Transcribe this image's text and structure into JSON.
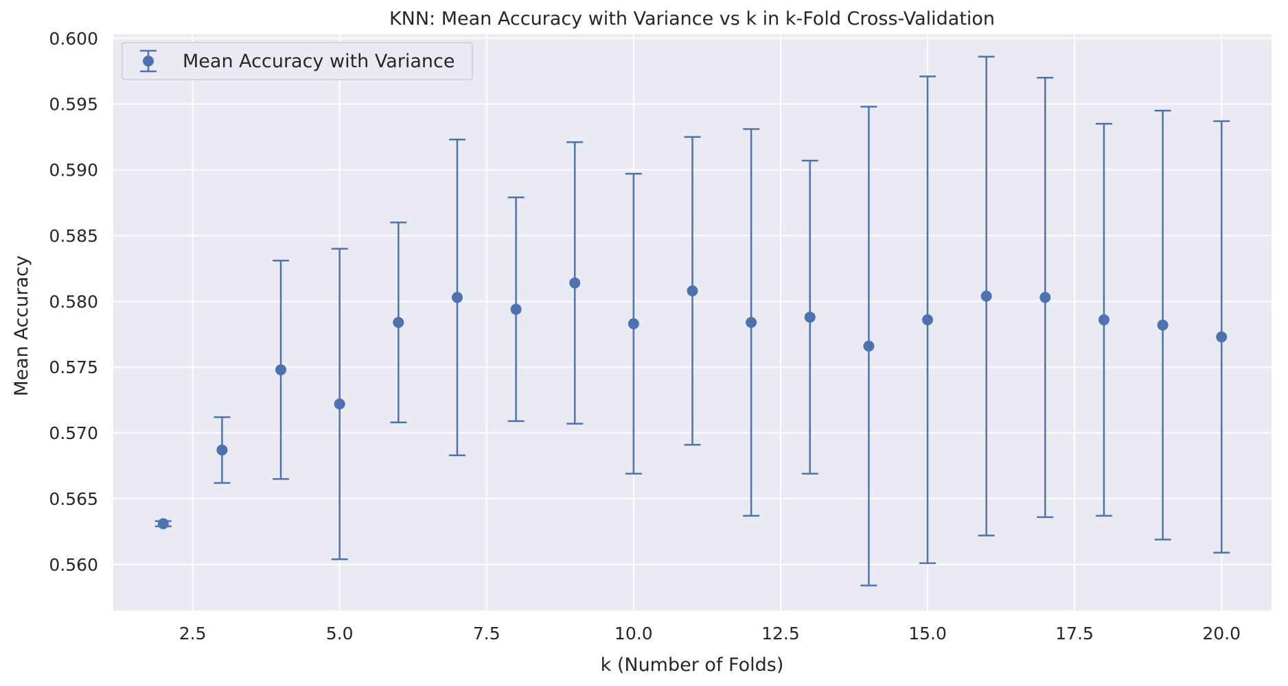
{
  "chart_data": {
    "type": "scatter",
    "title": "KNN: Mean Accuracy with Variance vs k in k-Fold Cross-Validation",
    "xlabel": "k (Number of Folds)",
    "ylabel": "Mean Accuracy",
    "xlim": [
      1.15,
      20.85
    ],
    "ylim": [
      0.5565,
      0.6003
    ],
    "xticks": [
      2.5,
      5.0,
      7.5,
      10.0,
      12.5,
      15.0,
      17.5,
      20.0
    ],
    "xtick_labels": [
      "2.5",
      "5.0",
      "7.5",
      "10.0",
      "12.5",
      "15.0",
      "17.5",
      "20.0"
    ],
    "yticks": [
      0.56,
      0.565,
      0.57,
      0.575,
      0.58,
      0.585,
      0.59,
      0.595,
      0.6
    ],
    "ytick_labels": [
      "0.560",
      "0.565",
      "0.570",
      "0.575",
      "0.580",
      "0.585",
      "0.590",
      "0.595",
      "0.600"
    ],
    "grid": true,
    "legend": {
      "position": "top-left",
      "entries": [
        "Mean Accuracy with Variance"
      ]
    },
    "series": [
      {
        "name": "Mean Accuracy with Variance",
        "color": "#4c72b0",
        "x": [
          2,
          3,
          4,
          5,
          6,
          7,
          8,
          9,
          10,
          11,
          12,
          13,
          14,
          15,
          16,
          17,
          18,
          19,
          20
        ],
        "y": [
          0.5631,
          0.5687,
          0.5748,
          0.5722,
          0.5784,
          0.5803,
          0.5794,
          0.5814,
          0.5783,
          0.5808,
          0.5784,
          0.5788,
          0.5766,
          0.5786,
          0.5804,
          0.5803,
          0.5786,
          0.5782,
          0.5773
        ],
        "yerr": [
          0.0002,
          0.0025,
          0.0083,
          0.0118,
          0.0076,
          0.012,
          0.0085,
          0.0107,
          0.0114,
          0.0117,
          0.0147,
          0.0119,
          0.0182,
          0.0185,
          0.0182,
          0.0167,
          0.0149,
          0.0163,
          0.0164
        ]
      }
    ]
  }
}
